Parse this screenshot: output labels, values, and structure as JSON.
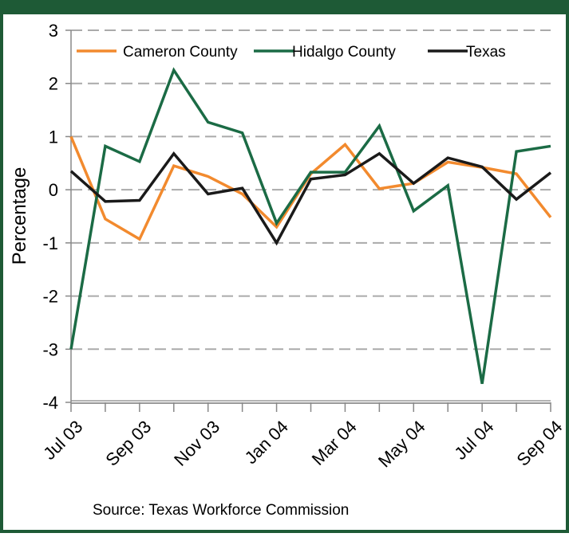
{
  "chart_data": {
    "type": "line",
    "y_label": "Percentage",
    "source": "Source: Texas Workforce Commission",
    "categories": [
      "Jul 03",
      null,
      "Sep 03",
      null,
      "Nov 03",
      null,
      "Jan 04",
      null,
      "Mar 04",
      null,
      "May 04",
      null,
      "Jul 04",
      null,
      "Sep 04"
    ],
    "series": [
      {
        "name": "Cameron County",
        "color": "#f28a2e",
        "values": [
          1.0,
          -0.55,
          -0.93,
          0.45,
          0.25,
          -0.08,
          -0.7,
          0.3,
          0.85,
          0.02,
          0.12,
          0.52,
          0.42,
          0.3,
          -0.52
        ]
      },
      {
        "name": "Hidalgo County",
        "color": "#1b6b45",
        "values": [
          -3.0,
          0.82,
          0.53,
          2.25,
          1.27,
          1.07,
          -0.63,
          0.33,
          0.33,
          1.2,
          -0.4,
          0.08,
          -3.65,
          0.72,
          0.82
        ]
      },
      {
        "name": "Texas",
        "color": "#1a1a1a",
        "values": [
          0.35,
          -0.22,
          -0.2,
          0.68,
          -0.08,
          0.03,
          -1.0,
          0.2,
          0.28,
          0.68,
          0.12,
          0.6,
          0.43,
          -0.18,
          0.32
        ]
      }
    ],
    "ylim": [
      -4,
      3
    ],
    "yticks": [
      3,
      2,
      1,
      0,
      -1,
      -2,
      -3,
      -4
    ],
    "grid": true
  }
}
